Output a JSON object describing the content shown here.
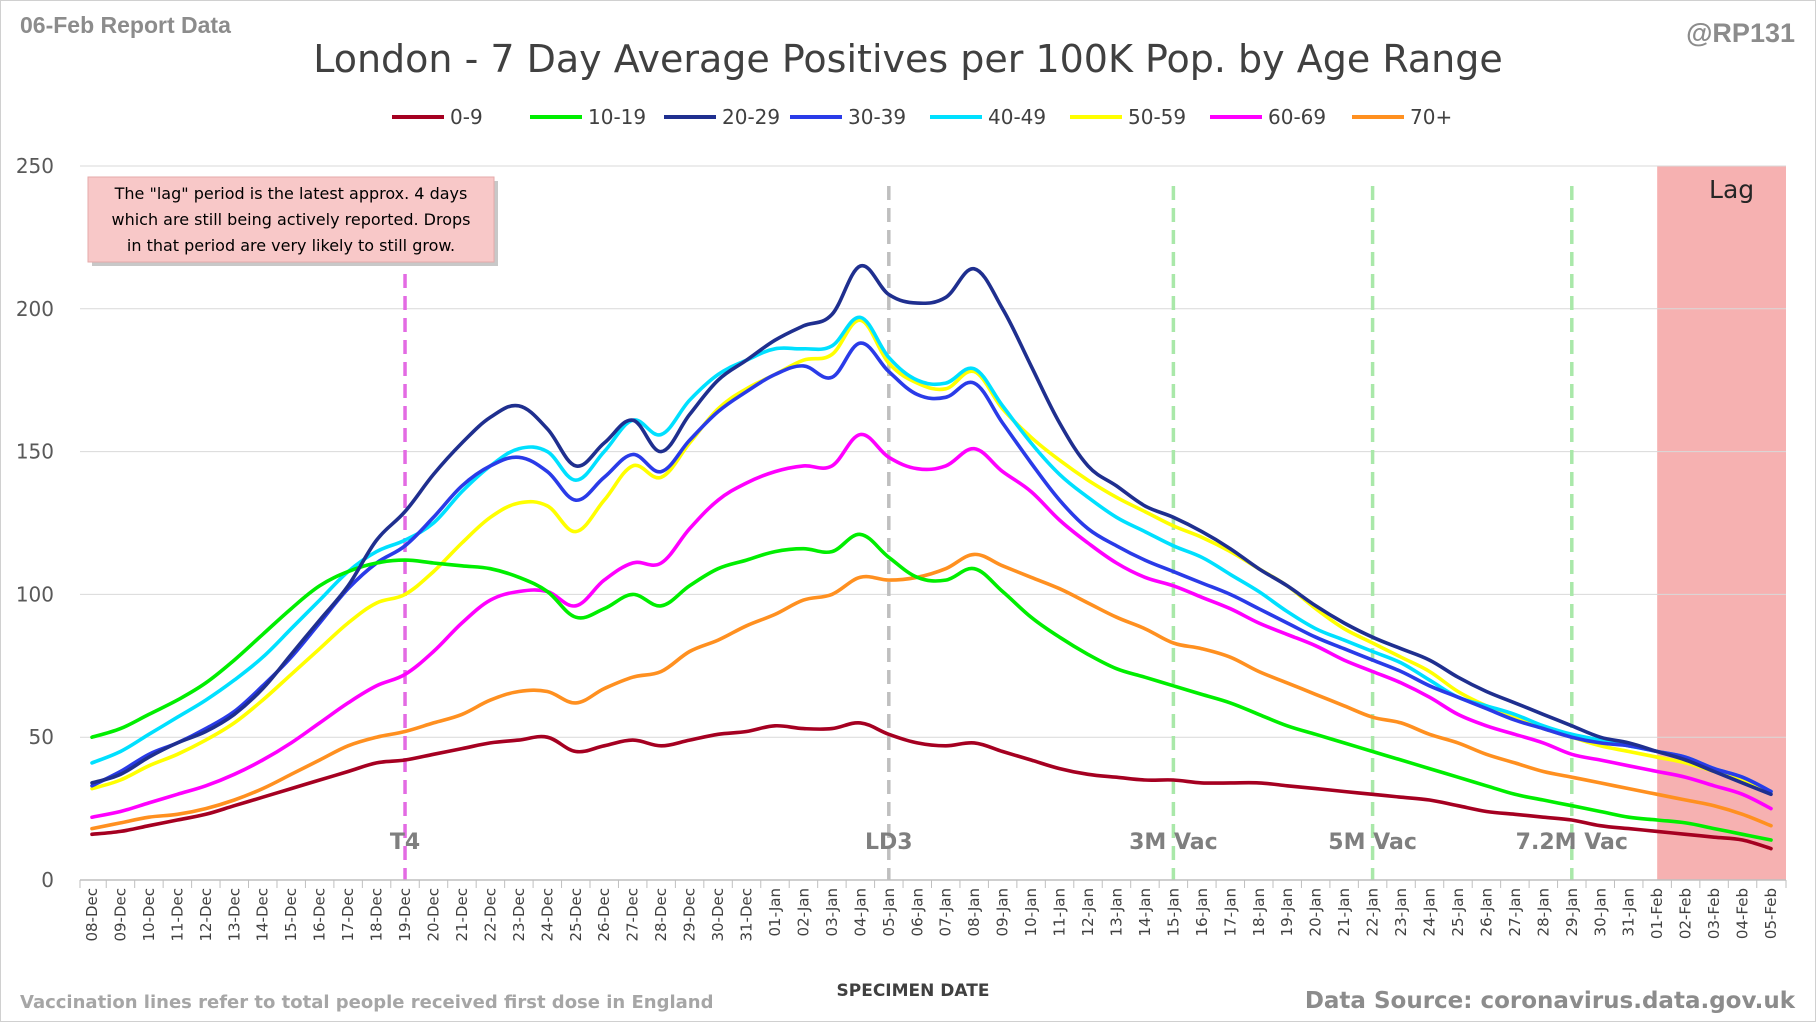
{
  "header": {
    "report_date": "06-Feb Report Data",
    "handle": "@RP131"
  },
  "footer": {
    "note": "Vaccination lines refer to total people received first dose in England",
    "source": "Data Source: coronavirus.data.gov.uk"
  },
  "annotation": {
    "lines": [
      "The \"lag\" period is the latest approx. 4 days",
      "which are still being actively reported.  Drops",
      "in that period are very likely to still grow."
    ],
    "background_color": "#f8c8c8"
  },
  "lag_region": {
    "label": "Lag",
    "start": "01-Feb",
    "end": "05-Feb",
    "color": "#f4a3a3"
  },
  "events": [
    {
      "label": "T4",
      "date": "19-Dec",
      "color": "#e36be3"
    },
    {
      "label": "LD3",
      "date": "05-Jan",
      "color": "#bfbfbf"
    },
    {
      "label": "3M Vac",
      "date": "15-Jan",
      "color": "#a9e8a9"
    },
    {
      "label": "5M Vac",
      "date": "22-Jan",
      "color": "#a9e8a9"
    },
    {
      "label": "7.2M Vac",
      "date": "29-Jan",
      "color": "#a9e8a9"
    }
  ],
  "chart_data": {
    "type": "line",
    "title": "London - 7 Day Average Positives per 100K Pop. by Age Range",
    "xlabel": "SPECIMEN DATE",
    "ylabel": "",
    "ylim": [
      0,
      250
    ],
    "yticks": [
      0,
      50,
      100,
      150,
      200,
      250
    ],
    "grid": true,
    "legend_position": "top",
    "categories": [
      "08-Dec",
      "09-Dec",
      "10-Dec",
      "11-Dec",
      "12-Dec",
      "13-Dec",
      "14-Dec",
      "15-Dec",
      "16-Dec",
      "17-Dec",
      "18-Dec",
      "19-Dec",
      "20-Dec",
      "21-Dec",
      "22-Dec",
      "23-Dec",
      "24-Dec",
      "25-Dec",
      "26-Dec",
      "27-Dec",
      "28-Dec",
      "29-Dec",
      "30-Dec",
      "31-Dec",
      "01-Jan",
      "02-Jan",
      "03-Jan",
      "04-Jan",
      "05-Jan",
      "06-Jan",
      "07-Jan",
      "08-Jan",
      "09-Jan",
      "10-Jan",
      "11-Jan",
      "12-Jan",
      "13-Jan",
      "14-Jan",
      "15-Jan",
      "16-Jan",
      "17-Jan",
      "18-Jan",
      "19-Jan",
      "20-Jan",
      "21-Jan",
      "22-Jan",
      "23-Jan",
      "24-Jan",
      "25-Jan",
      "26-Jan",
      "27-Jan",
      "28-Jan",
      "29-Jan",
      "30-Jan",
      "31-Jan",
      "01-Feb",
      "02-Feb",
      "03-Feb",
      "04-Feb",
      "05-Feb"
    ],
    "series": [
      {
        "name": "0-9",
        "color": "#a50021",
        "values": [
          16,
          17,
          19,
          21,
          23,
          26,
          29,
          32,
          35,
          38,
          41,
          42,
          44,
          46,
          48,
          49,
          50,
          45,
          47,
          49,
          47,
          49,
          51,
          52,
          54,
          53,
          53,
          55,
          51,
          48,
          47,
          48,
          45,
          42,
          39,
          37,
          36,
          35,
          35,
          34,
          34,
          34,
          33,
          32,
          31,
          30,
          29,
          28,
          26,
          24,
          23,
          22,
          21,
          19,
          18,
          17,
          16,
          15,
          14,
          11
        ]
      },
      {
        "name": "10-19",
        "color": "#00ee00",
        "values": [
          50,
          53,
          58,
          63,
          69,
          77,
          86,
          95,
          103,
          108,
          111,
          112,
          111,
          110,
          109,
          106,
          101,
          92,
          95,
          100,
          96,
          103,
          109,
          112,
          115,
          116,
          115,
          121,
          113,
          106,
          105,
          109,
          101,
          92,
          85,
          79,
          74,
          71,
          68,
          65,
          62,
          58,
          54,
          51,
          48,
          45,
          42,
          39,
          36,
          33,
          30,
          28,
          26,
          24,
          22,
          21,
          20,
          18,
          16,
          14
        ]
      },
      {
        "name": "20-29",
        "color": "#1f2f8f",
        "values": [
          34,
          37,
          43,
          48,
          52,
          58,
          67,
          79,
          91,
          103,
          119,
          129,
          142,
          153,
          162,
          166,
          158,
          145,
          153,
          161,
          150,
          163,
          175,
          182,
          189,
          194,
          198,
          215,
          205,
          202,
          204,
          214,
          200,
          180,
          160,
          145,
          138,
          131,
          127,
          122,
          116,
          109,
          103,
          96,
          90,
          85,
          81,
          77,
          71,
          66,
          62,
          58,
          54,
          50,
          48,
          45,
          42,
          38,
          34,
          30
        ]
      },
      {
        "name": "30-39",
        "color": "#2a3be8",
        "values": [
          33,
          38,
          44,
          48,
          53,
          59,
          68,
          78,
          90,
          102,
          111,
          117,
          127,
          138,
          145,
          148,
          143,
          133,
          141,
          149,
          143,
          154,
          164,
          171,
          177,
          180,
          176,
          188,
          178,
          170,
          169,
          174,
          160,
          146,
          133,
          123,
          117,
          112,
          108,
          104,
          100,
          95,
          90,
          85,
          81,
          77,
          73,
          68,
          64,
          60,
          56,
          53,
          50,
          48,
          47,
          45,
          43,
          39,
          36,
          31
        ]
      },
      {
        "name": "40-49",
        "color": "#00e0ff",
        "values": [
          41,
          45,
          51,
          57,
          63,
          70,
          78,
          88,
          98,
          108,
          115,
          119,
          125,
          136,
          145,
          151,
          150,
          140,
          150,
          161,
          156,
          168,
          177,
          182,
          186,
          186,
          187,
          197,
          183,
          175,
          174,
          179,
          166,
          153,
          142,
          134,
          127,
          122,
          117,
          113,
          107,
          101,
          94,
          88,
          84,
          80,
          76,
          70,
          64,
          61,
          58,
          54,
          51,
          49,
          47,
          45,
          43,
          39,
          36,
          31
        ]
      },
      {
        "name": "50-59",
        "color": "#ffff00",
        "values": [
          32,
          35,
          40,
          44,
          49,
          55,
          63,
          72,
          81,
          90,
          97,
          100,
          108,
          118,
          127,
          132,
          131,
          122,
          133,
          145,
          141,
          153,
          165,
          172,
          177,
          182,
          184,
          196,
          181,
          174,
          172,
          178,
          165,
          155,
          147,
          140,
          134,
          129,
          124,
          120,
          115,
          109,
          103,
          95,
          88,
          83,
          78,
          73,
          66,
          61,
          57,
          53,
          50,
          47,
          45,
          43,
          41,
          38,
          35,
          31
        ]
      },
      {
        "name": "60-69",
        "color": "#ff00ff",
        "values": [
          22,
          24,
          27,
          30,
          33,
          37,
          42,
          48,
          55,
          62,
          68,
          72,
          80,
          90,
          98,
          101,
          101,
          96,
          105,
          111,
          111,
          123,
          133,
          139,
          143,
          145,
          145,
          156,
          148,
          144,
          145,
          151,
          143,
          136,
          126,
          118,
          111,
          106,
          103,
          99,
          95,
          90,
          86,
          82,
          77,
          73,
          69,
          64,
          58,
          54,
          51,
          48,
          44,
          42,
          40,
          38,
          36,
          33,
          30,
          25
        ]
      },
      {
        "name": "70+",
        "color": "#ff9020",
        "values": [
          18,
          20,
          22,
          23,
          25,
          28,
          32,
          37,
          42,
          47,
          50,
          52,
          55,
          58,
          63,
          66,
          66,
          62,
          67,
          71,
          73,
          80,
          84,
          89,
          93,
          98,
          100,
          106,
          105,
          106,
          109,
          114,
          110,
          106,
          102,
          97,
          92,
          88,
          83,
          81,
          78,
          73,
          69,
          65,
          61,
          57,
          55,
          51,
          48,
          44,
          41,
          38,
          36,
          34,
          32,
          30,
          28,
          26,
          23,
          19
        ]
      }
    ]
  }
}
